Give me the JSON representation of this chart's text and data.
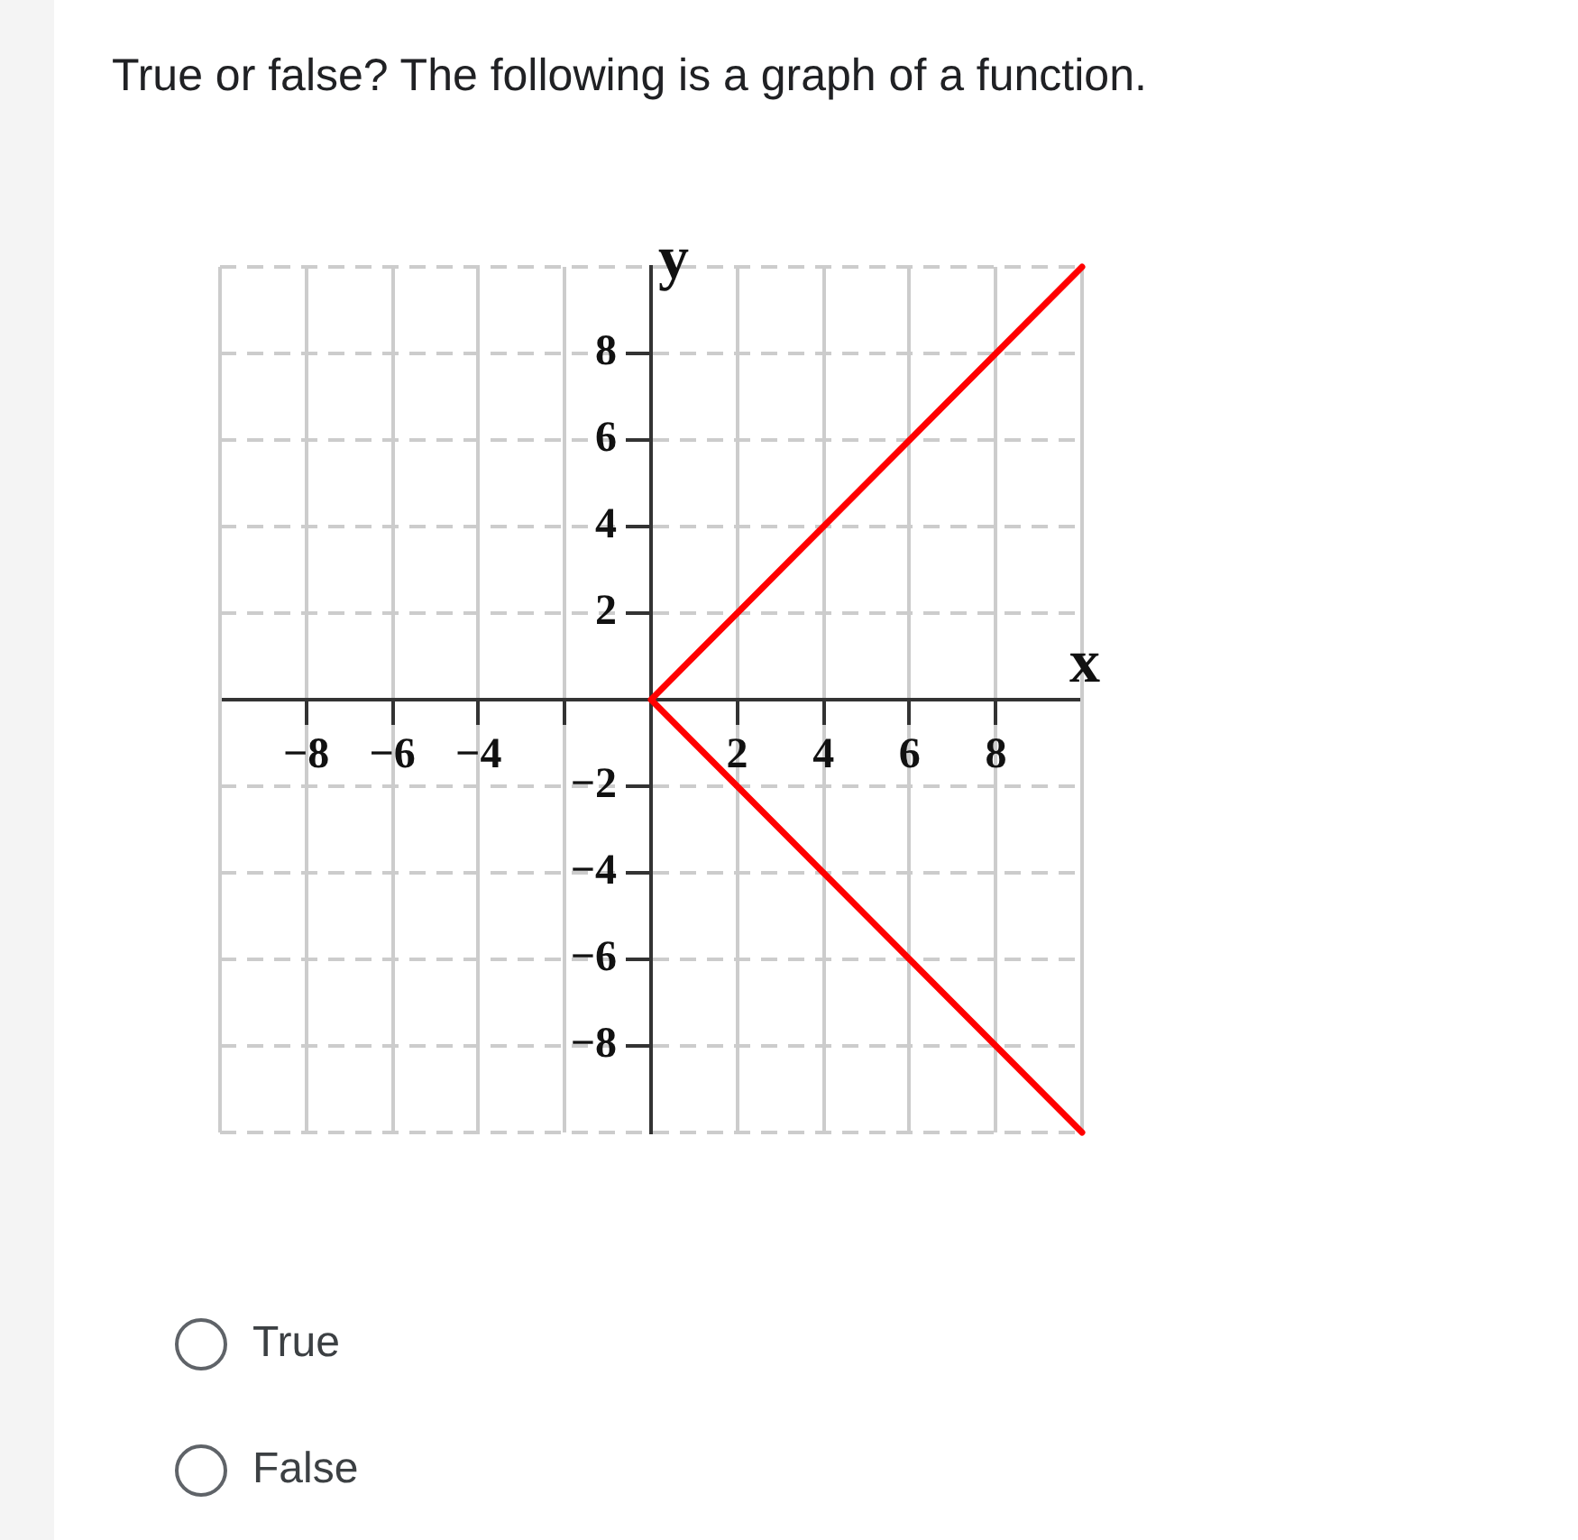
{
  "chart_data": {
    "type": "line",
    "title": "True or false? The following is a graph of a function.",
    "xlabel": "x",
    "ylabel": "y",
    "annotations": [
      "True",
      "False"
    ],
    "series": [
      {
        "color": "#ff0000",
        "x": [
          10,
          8,
          6,
          4,
          2,
          0,
          2,
          4,
          6,
          8,
          10
        ],
        "values": [
          10,
          8,
          6,
          4,
          2,
          0,
          -2,
          -4,
          -6,
          -8,
          -10
        ]
      }
    ],
    "marker": "none",
    "xlim": [
      -10,
      10
    ],
    "ylim": [
      -10,
      10
    ],
    "xticks": [
      -8,
      -6,
      -4,
      {
        "value": -2,
        "label": null
      },
      2,
      4,
      6,
      8
    ],
    "yticks": [
      -8,
      -6,
      -4,
      -2,
      2,
      4,
      6,
      8
    ],
    "grid": true
  }
}
